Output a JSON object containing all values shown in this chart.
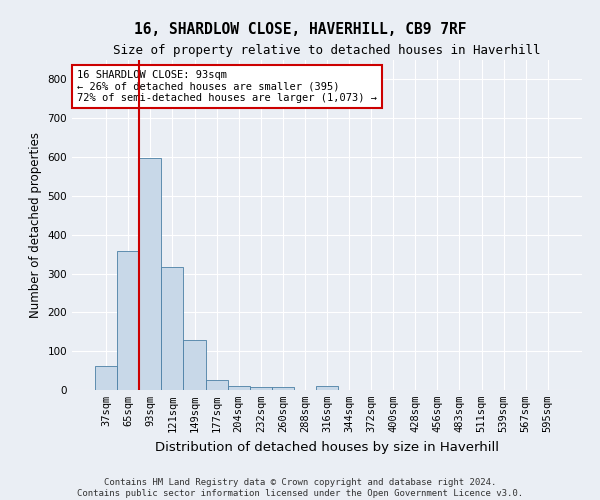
{
  "title": "16, SHARDLOW CLOSE, HAVERHILL, CB9 7RF",
  "subtitle": "Size of property relative to detached houses in Haverhill",
  "xlabel": "Distribution of detached houses by size in Haverhill",
  "ylabel": "Number of detached properties",
  "categories": [
    "37sqm",
    "65sqm",
    "93sqm",
    "121sqm",
    "149sqm",
    "177sqm",
    "204sqm",
    "232sqm",
    "260sqm",
    "288sqm",
    "316sqm",
    "344sqm",
    "372sqm",
    "400sqm",
    "428sqm",
    "456sqm",
    "483sqm",
    "511sqm",
    "539sqm",
    "567sqm",
    "595sqm"
  ],
  "values": [
    63,
    357,
    598,
    317,
    128,
    25,
    10,
    8,
    9,
    0,
    10,
    0,
    0,
    0,
    0,
    0,
    0,
    0,
    0,
    0,
    0
  ],
  "bar_color": "#c8d8e8",
  "bar_edge_color": "#4a7fa5",
  "vline_x": 1.5,
  "vline_color": "#cc0000",
  "annotation_text": "16 SHARDLOW CLOSE: 93sqm\n← 26% of detached houses are smaller (395)\n72% of semi-detached houses are larger (1,073) →",
  "annotation_box_color": "#cc0000",
  "ylim": [
    0,
    850
  ],
  "yticks": [
    0,
    100,
    200,
    300,
    400,
    500,
    600,
    700,
    800
  ],
  "footer_line1": "Contains HM Land Registry data © Crown copyright and database right 2024.",
  "footer_line2": "Contains public sector information licensed under the Open Government Licence v3.0.",
  "bg_color": "#eaeef4",
  "plot_bg_color": "#eaeef4",
  "grid_color": "#ffffff",
  "title_fontsize": 10.5,
  "subtitle_fontsize": 9,
  "axis_label_fontsize": 8.5,
  "tick_fontsize": 7.5,
  "footer_fontsize": 6.5,
  "annotation_fontsize": 7.5
}
